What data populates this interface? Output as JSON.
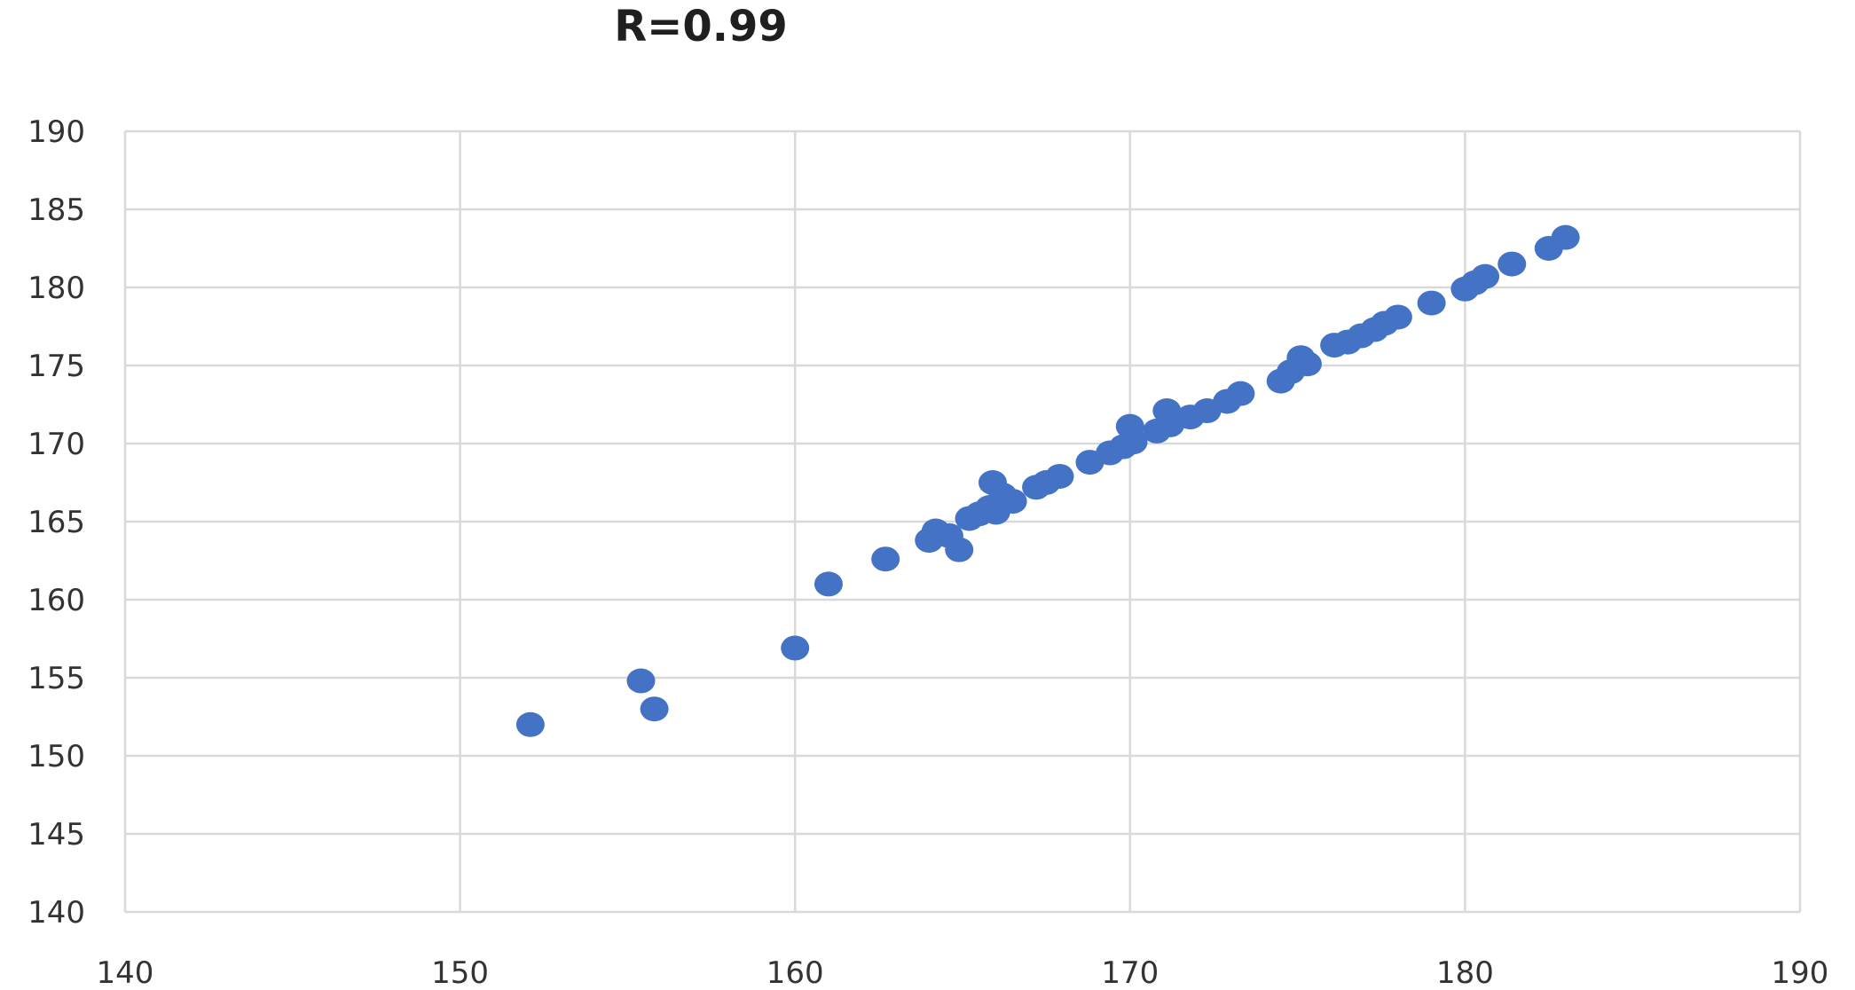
{
  "chart_data": {
    "type": "scatter",
    "title": "R=0.99",
    "xlabel": "",
    "ylabel": "",
    "xlim": [
      140,
      190
    ],
    "ylim": [
      140,
      190
    ],
    "xticks": [
      140,
      150,
      160,
      170,
      180,
      190
    ],
    "yticks": [
      140,
      145,
      150,
      155,
      160,
      165,
      170,
      175,
      180,
      185,
      190
    ],
    "grid": true,
    "legend": "none",
    "marker_color": "#4472C4",
    "grid_color": "#D9D9D9",
    "series": [
      {
        "points": [
          [
            152.1,
            152.0
          ],
          [
            155.4,
            154.8
          ],
          [
            155.8,
            153.0
          ],
          [
            160.0,
            156.9
          ],
          [
            161.0,
            161.0
          ],
          [
            162.7,
            162.6
          ],
          [
            164.0,
            163.8
          ],
          [
            164.2,
            164.4
          ],
          [
            164.6,
            164.1
          ],
          [
            164.9,
            163.2
          ],
          [
            165.2,
            165.2
          ],
          [
            165.5,
            165.5
          ],
          [
            165.8,
            165.9
          ],
          [
            165.9,
            167.5
          ],
          [
            166.0,
            165.6
          ],
          [
            166.2,
            166.7
          ],
          [
            166.5,
            166.3
          ],
          [
            167.2,
            167.2
          ],
          [
            167.5,
            167.5
          ],
          [
            167.9,
            167.9
          ],
          [
            168.8,
            168.8
          ],
          [
            169.4,
            169.4
          ],
          [
            169.8,
            169.8
          ],
          [
            170.0,
            171.1
          ],
          [
            170.1,
            170.1
          ],
          [
            170.8,
            170.8
          ],
          [
            171.1,
            172.1
          ],
          [
            171.2,
            171.2
          ],
          [
            171.8,
            171.7
          ],
          [
            172.3,
            172.1
          ],
          [
            172.9,
            172.7
          ],
          [
            173.3,
            173.2
          ],
          [
            174.5,
            174.0
          ],
          [
            174.8,
            174.6
          ],
          [
            175.1,
            175.5
          ],
          [
            175.3,
            175.1
          ],
          [
            176.1,
            176.3
          ],
          [
            176.5,
            176.5
          ],
          [
            176.9,
            176.9
          ],
          [
            177.3,
            177.3
          ],
          [
            177.6,
            177.7
          ],
          [
            178.0,
            178.1
          ],
          [
            179.0,
            179.0
          ],
          [
            180.0,
            179.9
          ],
          [
            180.3,
            180.3
          ],
          [
            180.6,
            180.7
          ],
          [
            181.4,
            181.5
          ],
          [
            182.5,
            182.5
          ],
          [
            183.0,
            183.2
          ]
        ]
      }
    ]
  }
}
